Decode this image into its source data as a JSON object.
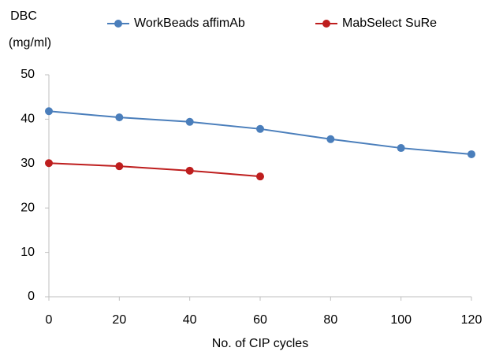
{
  "chart_data": {
    "type": "line",
    "ylabel": [
      "DBC",
      "(mg/ml)"
    ],
    "xlabel": "No. of CIP cycles",
    "series": [
      {
        "name": "WorkBeads affimAb",
        "color": "#4a7ebb",
        "x": [
          0,
          20,
          40,
          60,
          80,
          100,
          120
        ],
        "values": [
          41.8,
          40.4,
          39.4,
          37.8,
          35.5,
          33.5,
          32.1
        ]
      },
      {
        "name": "MabSelect SuRe",
        "color": "#be1e1e",
        "x": [
          0,
          20,
          40,
          60
        ],
        "values": [
          30.1,
          29.4,
          28.4,
          27.1
        ]
      }
    ],
    "xlim": [
      0,
      120
    ],
    "xticks": [
      0,
      20,
      40,
      60,
      80,
      100,
      120
    ],
    "ylim": [
      0,
      50
    ],
    "yticks": [
      0,
      10,
      20,
      30,
      40,
      50
    ],
    "grid": false,
    "legend": "top"
  }
}
